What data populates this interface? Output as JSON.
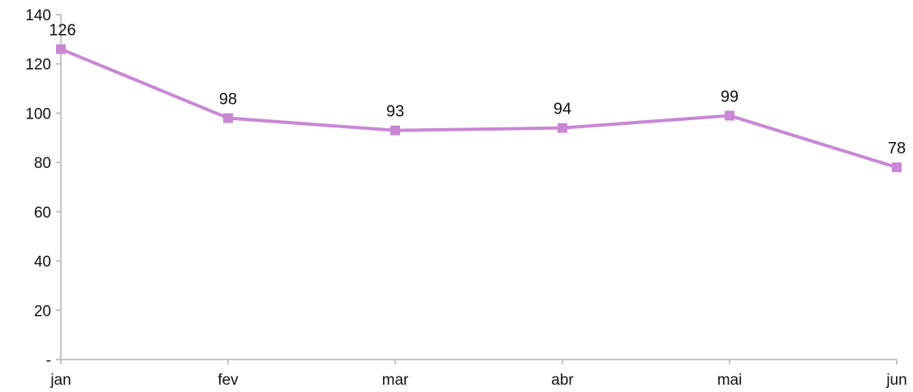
{
  "chart_data": {
    "type": "line",
    "title": "",
    "xlabel": "",
    "ylabel": "",
    "categories": [
      "jan",
      "fev",
      "mar",
      "abr",
      "mai",
      "jun"
    ],
    "series": [
      {
        "values": [
          126,
          98,
          93,
          94,
          99,
          78
        ],
        "color": "#c987d6",
        "marker": "square",
        "data_labels": [
          "126",
          "98",
          "93",
          "94",
          "99",
          "78"
        ]
      }
    ],
    "ylim": [
      0,
      140
    ],
    "yticks": [
      0,
      20,
      40,
      60,
      80,
      100,
      120,
      140
    ],
    "ytick_labels": [
      "-",
      "20",
      "40",
      "60",
      "80",
      "100",
      "120",
      "140"
    ],
    "grid": false,
    "legend": "none",
    "axis_color": "#b3b3b3"
  }
}
